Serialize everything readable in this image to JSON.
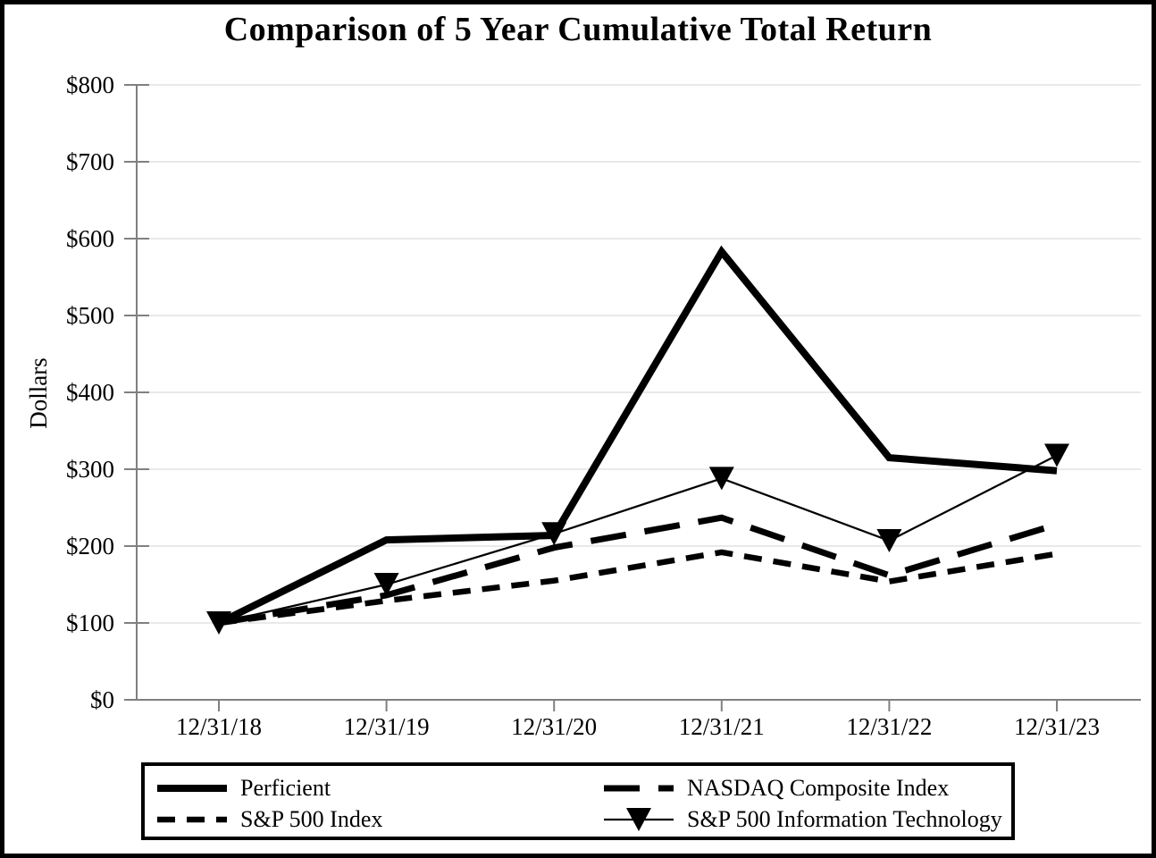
{
  "chart_data": {
    "type": "line",
    "title": "Comparison of 5 Year Cumulative Total Return",
    "xlabel": "",
    "ylabel": "Dollars",
    "categories": [
      "12/31/18",
      "12/31/19",
      "12/31/20",
      "12/31/21",
      "12/31/22",
      "12/31/23"
    ],
    "y_tick_labels": [
      "$0",
      "$100",
      "$200",
      "$300",
      "$400",
      "$500",
      "$600",
      "$700",
      "$800"
    ],
    "ylim": [
      0,
      800
    ],
    "y_tick_step": 100,
    "grid": "horizontal",
    "legend_position": "bottom-box",
    "line_color": "#000000",
    "axis_color": "#808080",
    "grid_color": "#e2e2e2",
    "series": [
      {
        "name": "S&P 500 Index",
        "style": "dashed",
        "marker": "none",
        "values": [
          100,
          129,
          155,
          192,
          154,
          190
        ]
      },
      {
        "name": "NASDAQ Composite Index",
        "style": "long-dash",
        "marker": "none",
        "values": [
          100,
          136,
          198,
          237,
          162,
          228
        ]
      },
      {
        "name": "Perficient",
        "style": "solid-thick",
        "marker": "none",
        "values": [
          100,
          208,
          214,
          583,
          315,
          298
        ]
      },
      {
        "name": "S&P 500 Information Technology",
        "style": "solid-thin",
        "marker": "triangle-down",
        "values": [
          100,
          150,
          216,
          288,
          207,
          318
        ]
      }
    ]
  },
  "legend": {
    "items": [
      {
        "series_index": 2
      },
      {
        "series_index": 1
      },
      {
        "series_index": 0
      },
      {
        "series_index": 3
      }
    ]
  }
}
